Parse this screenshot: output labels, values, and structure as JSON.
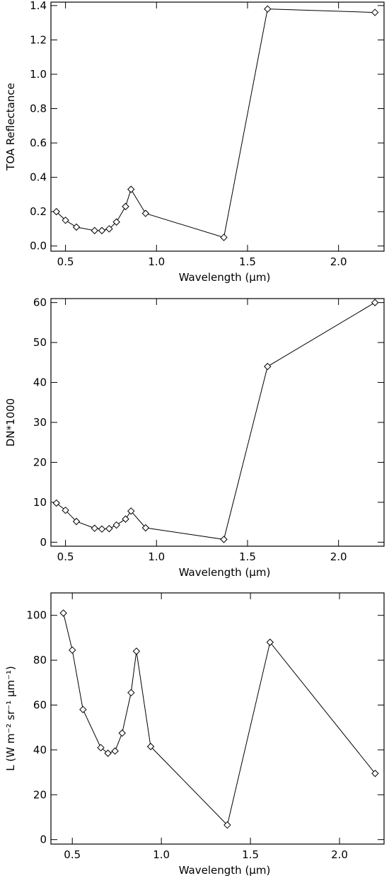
{
  "chart_data": [
    {
      "type": "line",
      "xlabel": "Wavelength (μm)",
      "ylabel": "TOA Reflectance",
      "xlim": [
        0.42,
        2.25
      ],
      "ylim": [
        -0.03,
        1.42
      ],
      "xticks": [
        0.5,
        1.0,
        1.5,
        2.0
      ],
      "xtick_labels": [
        "0.5",
        "1.0",
        "1.5",
        "2.0"
      ],
      "yticks": [
        0.0,
        0.2,
        0.4,
        0.6,
        0.8,
        1.0,
        1.2,
        1.4
      ],
      "ytick_labels": [
        "0.0",
        "0.2",
        "0.4",
        "0.6",
        "0.8",
        "1.0",
        "1.2",
        "1.4"
      ],
      "grid": false,
      "x": [
        0.45,
        0.5,
        0.56,
        0.66,
        0.7,
        0.74,
        0.78,
        0.83,
        0.86,
        0.94,
        1.37,
        1.61,
        2.2
      ],
      "y": [
        0.2,
        0.15,
        0.11,
        0.09,
        0.09,
        0.1,
        0.14,
        0.23,
        0.33,
        0.19,
        0.05,
        1.38,
        1.36
      ]
    },
    {
      "type": "line",
      "xlabel": "Wavelength (μm)",
      "ylabel": "DN*1000",
      "xlim": [
        0.42,
        2.25
      ],
      "ylim": [
        -1,
        61
      ],
      "xticks": [
        0.5,
        1.0,
        1.5,
        2.0
      ],
      "xtick_labels": [
        "0.5",
        "1.0",
        "1.5",
        "2.0"
      ],
      "yticks": [
        0,
        10,
        20,
        30,
        40,
        50,
        60
      ],
      "ytick_labels": [
        "0",
        "10",
        "20",
        "30",
        "40",
        "50",
        "60"
      ],
      "grid": false,
      "x": [
        0.45,
        0.5,
        0.56,
        0.66,
        0.7,
        0.74,
        0.78,
        0.83,
        0.86,
        0.94,
        1.37,
        1.61,
        2.2
      ],
      "y": [
        9.8,
        8.0,
        5.2,
        3.5,
        3.3,
        3.4,
        4.3,
        5.8,
        7.8,
        3.6,
        0.7,
        44.0,
        60.0
      ]
    },
    {
      "type": "line",
      "xlabel": "Wavelength (μm)",
      "ylabel": "L (W m⁻² sr⁻¹ μm⁻¹)",
      "xlim": [
        0.38,
        2.25
      ],
      "ylim": [
        -2,
        110
      ],
      "xticks": [
        0.5,
        1.0,
        1.5,
        2.0
      ],
      "xtick_labels": [
        "0.5",
        "1.0",
        "1.5",
        "2.0"
      ],
      "yticks": [
        0,
        20,
        40,
        60,
        80,
        100
      ],
      "ytick_labels": [
        "0",
        "20",
        "40",
        "60",
        "80",
        "100"
      ],
      "grid": false,
      "x": [
        0.45,
        0.5,
        0.56,
        0.66,
        0.7,
        0.74,
        0.78,
        0.83,
        0.86,
        0.94,
        1.37,
        1.61,
        2.2
      ],
      "y": [
        101,
        84.5,
        58,
        41,
        38.5,
        39.5,
        47.5,
        65.5,
        84,
        41.5,
        6.5,
        88,
        29.5
      ]
    }
  ]
}
